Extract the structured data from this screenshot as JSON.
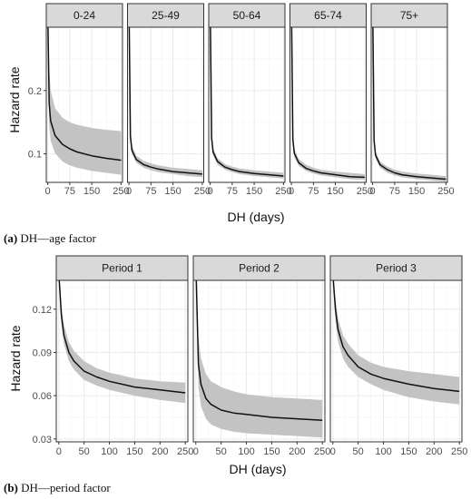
{
  "captions": {
    "a_label": "(a)",
    "a_text": "DH—age factor",
    "b_label": "(b)",
    "b_text": "DH—period factor"
  },
  "colors": {
    "strip_fill": "#d9d9d9",
    "band_fill": "#bdbdbd",
    "line": "#111111",
    "grid": "#ebebeb",
    "frame": "#333333"
  },
  "chart_data": [
    {
      "type": "line",
      "facet_by": "age",
      "xlabel": "DH (days)",
      "ylabel": "Hazard rate",
      "xlim": [
        -5,
        255
      ],
      "ylim": [
        0.055,
        0.3
      ],
      "xticks": [
        0,
        75,
        150,
        250
      ],
      "xtick_labels": [
        "0",
        "75",
        "150",
        "250"
      ],
      "yticks": [
        0.1,
        0.2
      ],
      "ytick_labels": [
        "0.1",
        "0.2"
      ],
      "grid": true,
      "legend": "none",
      "panels": [
        {
          "name": "0-24",
          "x": [
            1,
            5,
            10,
            25,
            50,
            75,
            100,
            150,
            200,
            250
          ],
          "y": [
            0.3,
            0.18,
            0.152,
            0.129,
            0.115,
            0.108,
            0.103,
            0.097,
            0.093,
            0.09
          ],
          "lower": [
            0.3,
            0.146,
            0.121,
            0.101,
            0.088,
            0.082,
            0.078,
            0.073,
            0.07,
            0.067
          ],
          "upper": [
            0.3,
            0.235,
            0.2,
            0.172,
            0.157,
            0.15,
            0.146,
            0.141,
            0.138,
            0.136
          ]
        },
        {
          "name": "25-49",
          "x": [
            1,
            5,
            10,
            25,
            50,
            75,
            100,
            150,
            200,
            250
          ],
          "y": [
            0.3,
            0.128,
            0.106,
            0.091,
            0.083,
            0.079,
            0.076,
            0.072,
            0.07,
            0.068
          ],
          "lower": [
            0.3,
            0.121,
            0.1,
            0.086,
            0.078,
            0.074,
            0.071,
            0.068,
            0.065,
            0.063
          ],
          "upper": [
            0.3,
            0.137,
            0.114,
            0.097,
            0.089,
            0.085,
            0.082,
            0.078,
            0.076,
            0.074
          ]
        },
        {
          "name": "50-64",
          "x": [
            1,
            5,
            10,
            25,
            50,
            75,
            100,
            150,
            200,
            250
          ],
          "y": [
            0.3,
            0.125,
            0.103,
            0.088,
            0.079,
            0.075,
            0.072,
            0.069,
            0.067,
            0.065
          ],
          "lower": [
            0.3,
            0.119,
            0.098,
            0.083,
            0.075,
            0.071,
            0.068,
            0.065,
            0.063,
            0.061
          ],
          "upper": [
            0.3,
            0.132,
            0.109,
            0.093,
            0.084,
            0.08,
            0.077,
            0.074,
            0.072,
            0.07
          ]
        },
        {
          "name": "65-74",
          "x": [
            1,
            5,
            10,
            25,
            50,
            75,
            100,
            150,
            200,
            250
          ],
          "y": [
            0.3,
            0.123,
            0.101,
            0.086,
            0.077,
            0.073,
            0.07,
            0.067,
            0.064,
            0.063
          ],
          "lower": [
            0.3,
            0.116,
            0.095,
            0.081,
            0.073,
            0.069,
            0.066,
            0.063,
            0.06,
            0.059
          ],
          "upper": [
            0.3,
            0.131,
            0.108,
            0.092,
            0.083,
            0.078,
            0.075,
            0.072,
            0.07,
            0.068
          ]
        },
        {
          "name": "75+",
          "x": [
            1,
            5,
            10,
            25,
            50,
            75,
            100,
            150,
            200,
            250
          ],
          "y": [
            0.3,
            0.121,
            0.098,
            0.083,
            0.075,
            0.07,
            0.067,
            0.064,
            0.062,
            0.06
          ],
          "lower": [
            0.3,
            0.114,
            0.093,
            0.078,
            0.07,
            0.066,
            0.063,
            0.06,
            0.058,
            0.056
          ],
          "upper": [
            0.3,
            0.128,
            0.104,
            0.088,
            0.08,
            0.075,
            0.072,
            0.069,
            0.067,
            0.065
          ]
        }
      ]
    },
    {
      "type": "line",
      "facet_by": "period",
      "xlabel": "DH (days)",
      "ylabel": "Hazard rate",
      "xlim": [
        -5,
        255
      ],
      "ylim": [
        0.028,
        0.14
      ],
      "xticks": [
        0,
        50,
        100,
        150,
        200,
        250
      ],
      "xtick_labels": [
        "0",
        "50",
        "100",
        "150",
        "200",
        "250"
      ],
      "yticks": [
        0.03,
        0.06,
        0.09,
        0.12
      ],
      "ytick_labels": [
        "0.03",
        "0.06",
        "0.09",
        "0.12"
      ],
      "grid": true,
      "legend": "none",
      "panels": [
        {
          "name": "Period 1",
          "x": [
            1,
            5,
            10,
            20,
            30,
            50,
            75,
            100,
            150,
            200,
            250
          ],
          "y": [
            0.14,
            0.116,
            0.102,
            0.09,
            0.084,
            0.077,
            0.073,
            0.07,
            0.066,
            0.064,
            0.062
          ],
          "lower": [
            0.14,
            0.11,
            0.096,
            0.084,
            0.078,
            0.071,
            0.067,
            0.064,
            0.06,
            0.057,
            0.055
          ],
          "upper": [
            0.14,
            0.123,
            0.109,
            0.097,
            0.091,
            0.084,
            0.079,
            0.076,
            0.072,
            0.07,
            0.069
          ]
        },
        {
          "name": "Period 2",
          "x": [
            1,
            5,
            10,
            20,
            30,
            50,
            75,
            100,
            150,
            200,
            250
          ],
          "y": [
            0.14,
            0.082,
            0.068,
            0.058,
            0.054,
            0.05,
            0.048,
            0.047,
            0.045,
            0.044,
            0.043
          ],
          "lower": [
            0.14,
            0.066,
            0.053,
            0.044,
            0.04,
            0.037,
            0.035,
            0.034,
            0.033,
            0.032,
            0.031
          ],
          "upper": [
            0.14,
            0.101,
            0.086,
            0.075,
            0.07,
            0.066,
            0.063,
            0.061,
            0.059,
            0.058,
            0.057
          ]
        },
        {
          "name": "Period 3",
          "x": [
            1,
            5,
            10,
            20,
            30,
            50,
            75,
            100,
            150,
            200,
            250
          ],
          "y": [
            0.14,
            0.12,
            0.106,
            0.094,
            0.088,
            0.08,
            0.075,
            0.072,
            0.068,
            0.065,
            0.063
          ],
          "lower": [
            0.14,
            0.112,
            0.098,
            0.086,
            0.08,
            0.073,
            0.068,
            0.064,
            0.059,
            0.056,
            0.054
          ],
          "upper": [
            0.14,
            0.128,
            0.114,
            0.102,
            0.096,
            0.088,
            0.083,
            0.08,
            0.077,
            0.075,
            0.073
          ]
        }
      ]
    }
  ]
}
